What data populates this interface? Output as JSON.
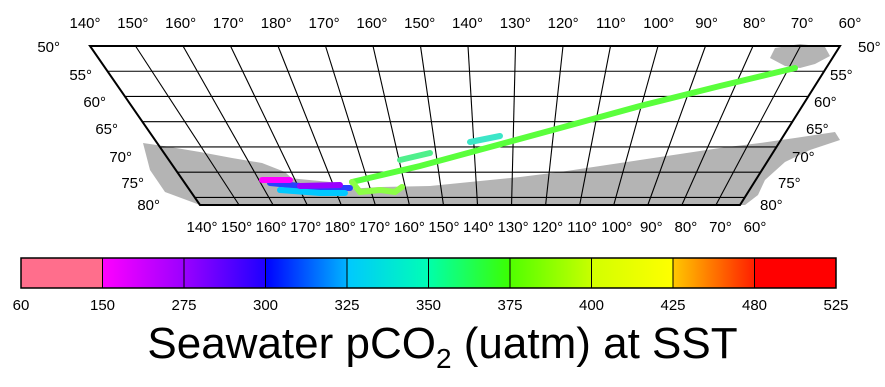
{
  "map": {
    "top_longitude_labels": [
      "140°",
      "150°",
      "160°",
      "170°",
      "180°",
      "170°",
      "160°",
      "150°",
      "140°",
      "130°",
      "120°",
      "110°",
      "100°",
      "90°",
      "80°",
      "70°",
      "60°"
    ],
    "bottom_longitude_labels": [
      "140°",
      "150°",
      "160°",
      "170°",
      "180°",
      "170°",
      "160°",
      "150°",
      "140°",
      "130°",
      "120°",
      "110°",
      "100°",
      "90°",
      "80°",
      "70°",
      "60°"
    ],
    "latitude_labels_left": [
      "50°",
      "55°",
      "60°",
      "65°",
      "70°",
      "75°",
      "80°"
    ],
    "latitude_labels_right": [
      "50°",
      "55°",
      "60°",
      "65°",
      "70°",
      "75°",
      "80°"
    ],
    "land_color": "#b4b4b4",
    "grid_color": "#000000"
  },
  "colorbar": {
    "tick_labels": [
      "60",
      "150",
      "275",
      "300",
      "325",
      "350",
      "375",
      "400",
      "425",
      "480",
      "525"
    ],
    "segment_colors": [
      [
        "#ff6e8c",
        "#ff6e8c"
      ],
      [
        "#ff00ff",
        "#9b00ff"
      ],
      [
        "#9b00ff",
        "#1e00ff"
      ],
      [
        "#0000ff",
        "#00b4ff"
      ],
      [
        "#00c8ff",
        "#00ffb4"
      ],
      [
        "#00ffaa",
        "#3cff00"
      ],
      [
        "#50ff00",
        "#c8ff00"
      ],
      [
        "#d2ff00",
        "#ffff00"
      ],
      [
        "#ffc800",
        "#ff1e00"
      ],
      [
        "#ff0000",
        "#ff0000"
      ]
    ]
  },
  "caption": {
    "prefix": "Seawater pCO",
    "subscript": "2",
    "suffix": " (uatm) at SST"
  }
}
